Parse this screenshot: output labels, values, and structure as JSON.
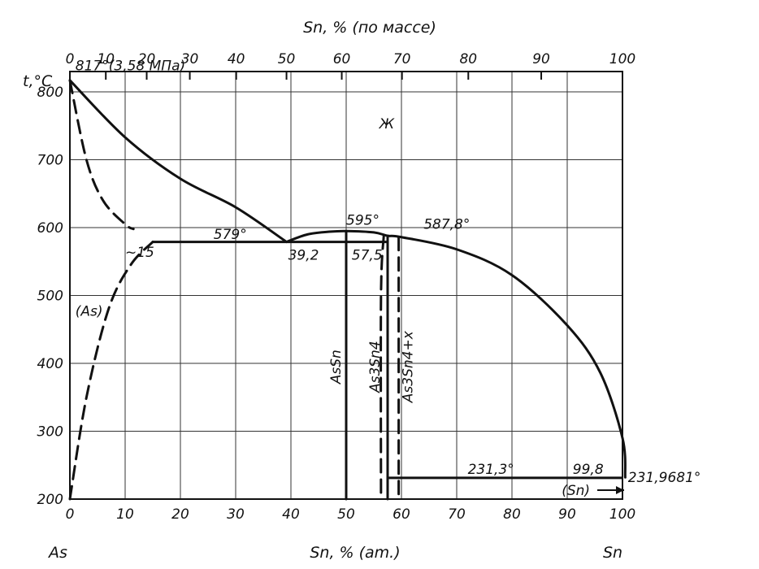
{
  "chart_data": {
    "type": "line",
    "title": "",
    "xlabel_bottom": "Sn, % (am.)",
    "xlabel_top": "Sn, % (по массе)",
    "ylabel": "t,°C",
    "left_component": "As",
    "right_component": "Sn",
    "x_range": [
      0,
      100
    ],
    "y_range": [
      200,
      830
    ],
    "bottom_ticks": [
      "0",
      "10",
      "20",
      "30",
      "40",
      "50",
      "60",
      "70",
      "80",
      "90",
      "100"
    ],
    "y_ticks": [
      "200",
      "300",
      "400",
      "500",
      "600",
      "700",
      "800"
    ],
    "top_ticks": [
      {
        "label": "0",
        "at": 0
      },
      {
        "label": "10",
        "at": 6.5
      },
      {
        "label": "20",
        "at": 13.9
      },
      {
        "label": "30",
        "at": 21.7
      },
      {
        "label": "40",
        "at": 30.1
      },
      {
        "label": "50",
        "at": 39.2
      },
      {
        "label": "60",
        "at": 49.2
      },
      {
        "label": "70",
        "at": 60.1
      },
      {
        "label": "80",
        "at": 72.1
      },
      {
        "label": "90",
        "at": 85.3
      },
      {
        "label": "100",
        "at": 100
      }
    ],
    "grid": true,
    "series": [
      {
        "style": "solid",
        "points": [
          [
            0,
            817
          ],
          [
            10,
            733
          ],
          [
            20,
            672
          ],
          [
            30,
            630
          ],
          [
            39.2,
            579
          ]
        ]
      },
      {
        "style": "solid",
        "points": [
          [
            39.2,
            579
          ],
          [
            43,
            590
          ],
          [
            47,
            594
          ],
          [
            50,
            595
          ],
          [
            55,
            593
          ],
          [
            57.5,
            588
          ],
          [
            60,
            586
          ],
          [
            70,
            568
          ],
          [
            80,
            530
          ],
          [
            90,
            456
          ],
          [
            96,
            386
          ],
          [
            100,
            290
          ],
          [
            100.5,
            231.97
          ]
        ]
      },
      {
        "style": "solid",
        "points": [
          [
            15,
            579
          ],
          [
            57.5,
            579
          ]
        ]
      },
      {
        "style": "solid",
        "points": [
          [
            50,
            200
          ],
          [
            50,
            595
          ]
        ]
      },
      {
        "style": "solid",
        "points": [
          [
            57.5,
            200
          ],
          [
            57.5,
            588
          ]
        ]
      },
      {
        "style": "solid",
        "points": [
          [
            57.5,
            231.3
          ],
          [
            99.8,
            231.3
          ]
        ]
      },
      {
        "style": "dashed",
        "points": [
          [
            0,
            817
          ],
          [
            3,
            700
          ],
          [
            6,
            640
          ],
          [
            10,
            605
          ],
          [
            11.5,
            598
          ]
        ]
      },
      {
        "style": "dashed",
        "points": [
          [
            0,
            200
          ],
          [
            3,
            350
          ],
          [
            7,
            480
          ],
          [
            11,
            545
          ],
          [
            15,
            579
          ]
        ]
      },
      {
        "style": "dashed",
        "points": [
          [
            56.8,
            588
          ],
          [
            56.3,
            500
          ],
          [
            56.3,
            200
          ]
        ]
      },
      {
        "style": "dashed",
        "points": [
          [
            59.5,
            586
          ],
          [
            59.5,
            200
          ]
        ]
      }
    ],
    "annotations": [
      {
        "text": "817°(3,58 МПа)",
        "x": 1,
        "y": 832
      },
      {
        "text": "Ж",
        "x": 56,
        "y": 746
      },
      {
        "text": "595°",
        "x": 50,
        "y": 604
      },
      {
        "text": "587,8°",
        "x": 64,
        "y": 598
      },
      {
        "text": "579°",
        "x": 26,
        "y": 583
      },
      {
        "text": "~15",
        "x": 10,
        "y": 557
      },
      {
        "text": "39,2",
        "x": 39.5,
        "y": 553
      },
      {
        "text": "57,5",
        "x": 51,
        "y": 553
      },
      {
        "text": "(As)",
        "x": 1,
        "y": 470
      },
      {
        "text": "AsSn",
        "x": 49,
        "y": 395
      },
      {
        "text": "As3Sn4",
        "x": 56,
        "y": 395
      },
      {
        "text": "As3Sn4+x",
        "x": 62,
        "y": 395
      },
      {
        "text": "231,3°",
        "x": 72,
        "y": 237
      },
      {
        "text": "99,8",
        "x": 91,
        "y": 237
      },
      {
        "text": "231,9681°",
        "x": 101,
        "y": 225
      },
      {
        "text": "(Sn)",
        "x": 89,
        "y": 206
      }
    ]
  }
}
